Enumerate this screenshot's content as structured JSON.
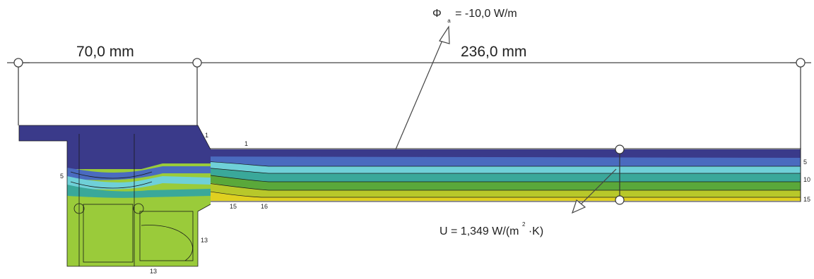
{
  "dimensions": {
    "left_length": "70,0 mm",
    "right_length": "236,0 mm"
  },
  "heat_flow": {
    "symbol": "Φ",
    "subscript": "a",
    "value": "= -10,0 W/m"
  },
  "u_value": {
    "prefix": "U = 1,349 W/(m",
    "superscript": "2",
    "suffix": "·K)"
  },
  "isotherm_labels": {
    "top_frame": "1",
    "top_line": "1",
    "left_5": "5",
    "mid_15": "15",
    "mid_16": "16",
    "right_5": "5",
    "right_10": "10",
    "right_15": "15",
    "frame_13_a": "13",
    "frame_13_b": "13"
  },
  "colors": {
    "cold": "#3a3a8a",
    "mid_blue": "#4a6bbf",
    "cyan": "#6fd0d8",
    "teal": "#3aa89a",
    "green": "#5aa83a",
    "lime": "#9ac83a",
    "yellow": "#e0d020",
    "frame_green": "#9acb3a",
    "dim_line": "#333333"
  }
}
